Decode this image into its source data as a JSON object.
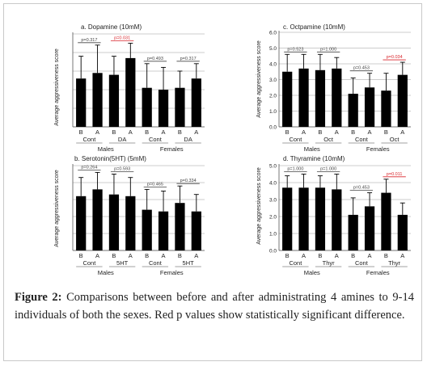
{
  "caption": {
    "label": "Figure 2:",
    "text": "Comparisons between before and after administrating 4 amines to 9-14 individuals of both the sexes. Red p values show statistically significant difference."
  },
  "colors": {
    "bar": "#000000",
    "significant": "#d9262c",
    "frame": "#c9c9c9"
  },
  "chart_data": [
    {
      "type": "bar",
      "title": "a. Dopamine (10mM)",
      "ylabel": "Average aggressiveness score",
      "ylim": [
        0,
        5
      ],
      "yticks": [],
      "x_labels": [
        "B",
        "A",
        "B",
        "A",
        "B",
        "A",
        "B",
        "A"
      ],
      "group_labels": [
        "Cont",
        "DA",
        "Cont",
        "DA"
      ],
      "sex_labels": [
        "Males",
        "Females"
      ],
      "values": [
        2.6,
        2.9,
        2.8,
        3.7,
        2.1,
        2.0,
        2.1,
        2.6
      ],
      "errors": [
        1.2,
        1.5,
        1.0,
        0.8,
        1.3,
        1.2,
        0.9,
        0.8
      ],
      "pvalues": [
        {
          "text": "p=0.317",
          "pair": 0,
          "sig": false
        },
        {
          "text": "p=0.031",
          "pair": 1,
          "sig": true
        },
        {
          "text": "p=0.493",
          "pair": 2,
          "sig": false
        },
        {
          "text": "p=0.317",
          "pair": 3,
          "sig": false
        }
      ]
    },
    {
      "type": "bar",
      "title": "c. Octpamine (10mM)",
      "ylabel": "Average aggressiveness score",
      "ylim": [
        0,
        6
      ],
      "yticks": [
        "0.0",
        "1.0",
        "2.0",
        "3.0",
        "4.0",
        "5.0",
        "6.0"
      ],
      "x_labels": [
        "B",
        "A",
        "B",
        "A",
        "B",
        "A",
        "B",
        "A"
      ],
      "group_labels": [
        "Cont",
        "Oct",
        "Cont",
        "Oct"
      ],
      "sex_labels": [
        "Males",
        "Females"
      ],
      "values": [
        3.5,
        3.7,
        3.6,
        3.7,
        2.1,
        2.5,
        2.3,
        3.3
      ],
      "errors": [
        1.1,
        0.9,
        1.0,
        0.7,
        1.0,
        0.9,
        1.1,
        0.8
      ],
      "pvalues": [
        {
          "text": "p=0.523",
          "pair": 0,
          "sig": false
        },
        {
          "text": "p=1.000",
          "pair": 1,
          "sig": false
        },
        {
          "text": "p=0.453",
          "pair": 2,
          "sig": false
        },
        {
          "text": "p=0.034",
          "pair": 3,
          "sig": true
        }
      ]
    },
    {
      "type": "bar",
      "title": "b. Serotonin(5HT) (5mM)",
      "ylabel": "Average aggressiveness score",
      "ylim": [
        0,
        5
      ],
      "yticks": [],
      "x_labels": [
        "B",
        "A",
        "B",
        "A",
        "B",
        "A",
        "B",
        "A"
      ],
      "group_labels": [
        "Cont",
        "5HT",
        "Cont",
        "5HT"
      ],
      "sex_labels": [
        "Males",
        "Females"
      ],
      "values": [
        3.2,
        3.6,
        3.3,
        3.2,
        2.4,
        2.3,
        2.8,
        2.3
      ],
      "errors": [
        1.1,
        1.0,
        1.2,
        1.1,
        1.2,
        1.2,
        1.0,
        1.0
      ],
      "pvalues": [
        {
          "text": "p=0.264",
          "pair": 0,
          "sig": false
        },
        {
          "text": "p=0.593",
          "pair": 1,
          "sig": false
        },
        {
          "text": "p=0.465",
          "pair": 2,
          "sig": false
        },
        {
          "text": "p=0.334",
          "pair": 3,
          "sig": false
        }
      ]
    },
    {
      "type": "bar",
      "title": "d. Thyramine (10mM)",
      "ylabel": "Average aggressiveness score",
      "ylim": [
        0,
        5
      ],
      "yticks": [
        "0.0",
        "1.0",
        "2.0",
        "3.0",
        "4.0",
        "5.0"
      ],
      "x_labels": [
        "B",
        "A",
        "B",
        "A",
        "B",
        "A",
        "B",
        "A"
      ],
      "group_labels": [
        "Cont",
        "Thyr",
        "Cont",
        "Thyr"
      ],
      "sex_labels": [
        "Males",
        "Females"
      ],
      "values": [
        3.7,
        3.7,
        3.7,
        3.6,
        2.1,
        2.6,
        3.4,
        2.1
      ],
      "errors": [
        0.7,
        0.8,
        0.7,
        0.9,
        1.0,
        0.8,
        0.8,
        0.7
      ],
      "pvalues": [
        {
          "text": "p=1.000",
          "pair": 0,
          "sig": false
        },
        {
          "text": "p=1.000",
          "pair": 1,
          "sig": false
        },
        {
          "text": "p=0.453",
          "pair": 2,
          "sig": false
        },
        {
          "text": "p=0.011",
          "pair": 3,
          "sig": true
        }
      ]
    }
  ]
}
